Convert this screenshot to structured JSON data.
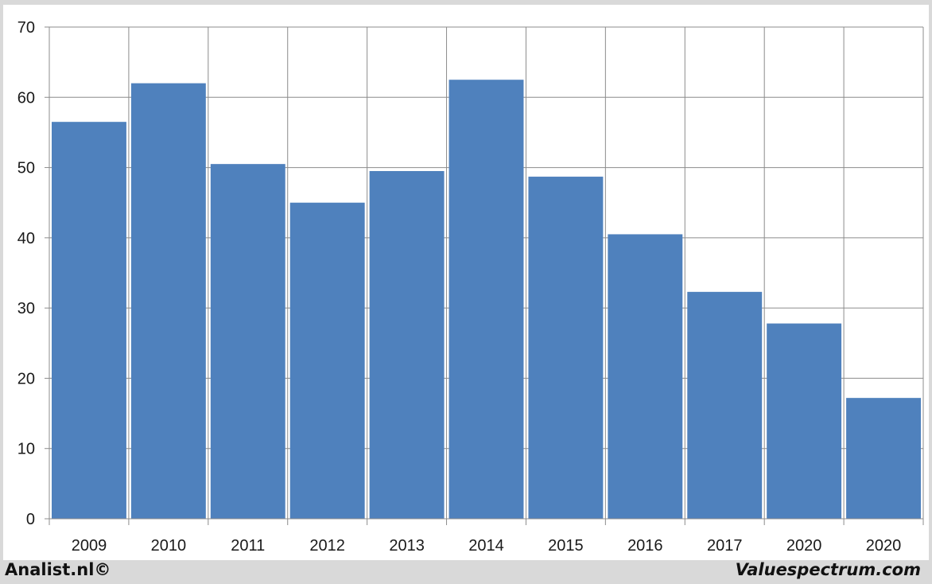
{
  "chart_data": {
    "type": "bar",
    "categories": [
      "2009",
      "2010",
      "2011",
      "2012",
      "2013",
      "2014",
      "2015",
      "2016",
      "2017",
      "2020",
      "2020"
    ],
    "values": [
      56.5,
      62.0,
      50.5,
      45.0,
      49.5,
      62.5,
      48.7,
      40.5,
      32.3,
      27.8,
      17.2
    ],
    "title": "",
    "xlabel": "",
    "ylabel": "",
    "ylim": [
      0,
      70
    ],
    "yticks": [
      0,
      10,
      20,
      30,
      40,
      50,
      60,
      70
    ],
    "grid": true,
    "legend": "none",
    "bar_color": "#4f81bd"
  },
  "footer": {
    "left": "Analist.nl©",
    "right": "Valuespectrum.com"
  }
}
